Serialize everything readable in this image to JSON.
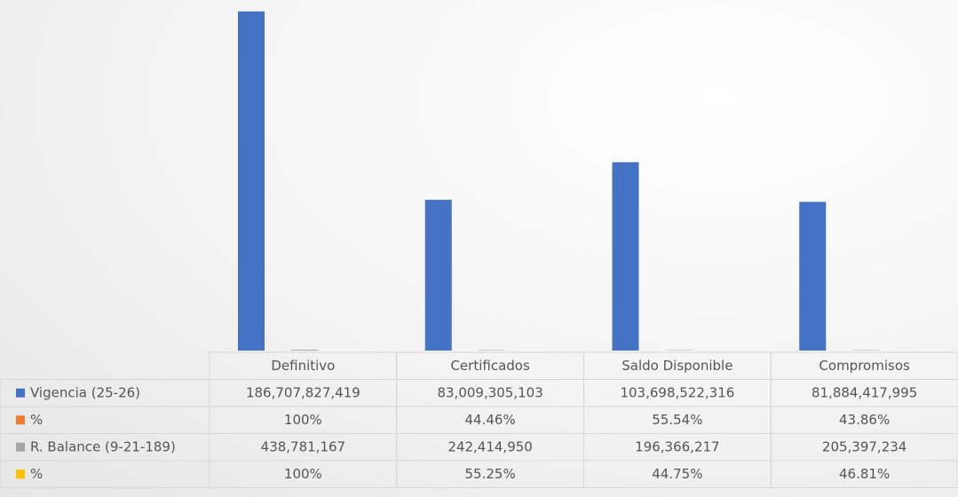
{
  "chart_data": {
    "type": "bar",
    "categories": [
      "Definitivo",
      "Certificados",
      "Saldo Disponible",
      "Compromisos"
    ],
    "series": [
      {
        "name": "Vigencia (25-26)",
        "color": "#4472c4",
        "values": [
          186707827419,
          83009305103,
          103698522316,
          81884417995
        ],
        "value_labels": [
          "186,707,827,419",
          "83,009,305,103",
          "103,698,522,316",
          "81,884,417,995"
        ]
      },
      {
        "name": "%",
        "color": "#ed7d31",
        "values": [
          100,
          44.46,
          55.54,
          43.86
        ],
        "value_labels": [
          "100%",
          "44.46%",
          "55.54%",
          "43.86%"
        ]
      },
      {
        "name": "R. Balance (9-21-189)",
        "color": "#a5a5a5",
        "values": [
          438781167,
          242414950,
          196366217,
          205397234
        ],
        "value_labels": [
          "438,781,167",
          "242,414,950",
          "196,366,217",
          "205,397,234"
        ]
      },
      {
        "name": "%",
        "color": "#ffc000",
        "values": [
          100,
          55.25,
          44.75,
          46.81
        ],
        "value_labels": [
          "100%",
          "55.25%",
          "44.75%",
          "46.81%"
        ]
      }
    ],
    "ylim": [
      0,
      193000000000
    ]
  }
}
